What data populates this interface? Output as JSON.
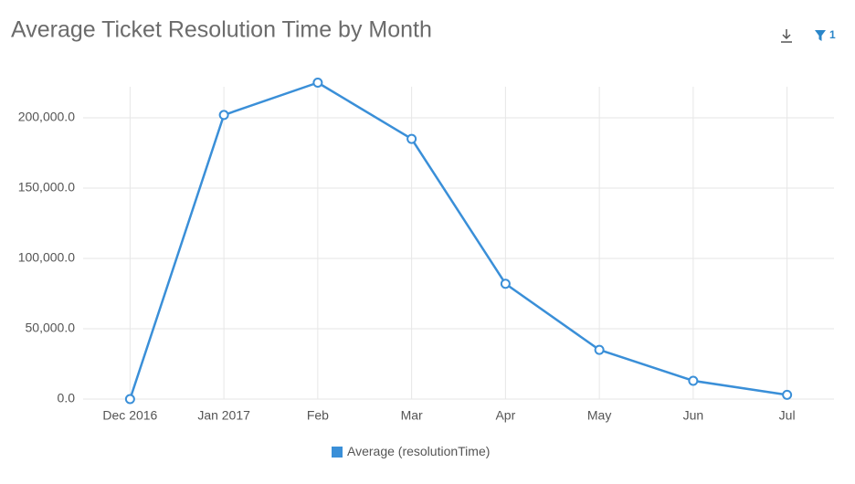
{
  "chart_data": {
    "type": "line",
    "title": "Average Ticket Resolution Time by Month",
    "categories": [
      "Dec 2016",
      "Jan 2017",
      "Feb",
      "Mar",
      "Apr",
      "May",
      "Jun",
      "Jul"
    ],
    "series": [
      {
        "name": "Average (resolutionTime)",
        "color": "#3a8fd8",
        "values": [
          0,
          202000,
          225000,
          185000,
          82000,
          35000,
          13000,
          3000
        ]
      }
    ],
    "ylim": [
      0,
      225000
    ],
    "yticks": [
      {
        "value": 0,
        "label": "0.0"
      },
      {
        "value": 50000,
        "label": "50,000.0"
      },
      {
        "value": 100000,
        "label": "100,000.0"
      },
      {
        "value": 150000,
        "label": "150,000.0"
      },
      {
        "value": 200000,
        "label": "200,000.0"
      }
    ],
    "grid": true
  },
  "toolbar": {
    "filter_count": "1"
  }
}
